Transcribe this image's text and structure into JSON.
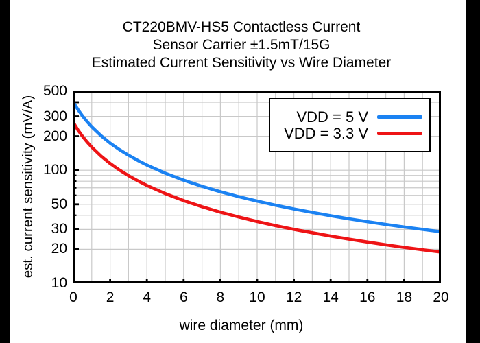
{
  "title": {
    "line1": "CT220BMV-HS5 Contactless Current",
    "line2": "Sensor Carrier ±1.5mT/15G",
    "line3": "Estimated Current Sensitivity vs Wire Diameter"
  },
  "axes": {
    "x_title": "wire diameter (mm)",
    "y_title": "est. current sensitivity (mV/A)",
    "x_labeled_values": [
      0,
      2,
      4,
      6,
      8,
      10,
      12,
      14,
      16,
      18,
      20
    ],
    "y_labeled_values": [
      500,
      300,
      200,
      100,
      50,
      30,
      20,
      10
    ]
  },
  "legend": {
    "entries": [
      {
        "label": "VDD = 5 V",
        "color": "#1b82f2"
      },
      {
        "label": "VDD = 3.3 V",
        "color": "#ee1416"
      }
    ]
  },
  "colors": {
    "frame": "#000000",
    "grid": "#c9c9c9",
    "background": "#ffffff",
    "side_bands": "#000000",
    "vdd5_line": "#1b82f2",
    "vdd33_line": "#ee1416"
  },
  "chart_data": {
    "type": "line",
    "title": "CT220BMV-HS5 Contactless Current Sensor Carrier ±1.5mT/15G — Estimated Current Sensitivity vs Wire Diameter",
    "xlabel": "wire diameter (mm)",
    "ylabel": "est. current sensitivity (mV/A)",
    "x_range": [
      0,
      20
    ],
    "y_range": [
      10,
      500
    ],
    "y_scale": "log",
    "grid": true,
    "legend_position": "top-right",
    "x_major_ticks": [
      2,
      4,
      6,
      8,
      10,
      12,
      14,
      16,
      18
    ],
    "x_minor_ticks": [
      1,
      3,
      5,
      7,
      9,
      11,
      13,
      15,
      17,
      19
    ],
    "x_gridlines": [
      1,
      2,
      3,
      4,
      5,
      6,
      7,
      8,
      9,
      10,
      11,
      12,
      13,
      14,
      15,
      16,
      17,
      18,
      19
    ],
    "y_major_ticks": [
      20,
      30,
      50,
      100,
      200,
      300,
      400
    ],
    "y_minor_ticks": [
      40,
      60,
      70,
      80,
      90
    ],
    "y_gridlines": [
      20,
      30,
      40,
      50,
      60,
      70,
      80,
      90,
      100,
      200,
      300,
      400
    ],
    "series": [
      {
        "name": "VDD = 5 V",
        "color": "#1b82f2",
        "points": [
          [
            0,
            400
          ],
          [
            0.25,
            344.1
          ],
          [
            0.5,
            302
          ],
          [
            0.75,
            269
          ],
          [
            1,
            242.5
          ],
          [
            1.5,
            202.6
          ],
          [
            2,
            174
          ],
          [
            2.5,
            152.5
          ],
          [
            3,
            135.7
          ],
          [
            3.5,
            122.2
          ],
          [
            4,
            111.2
          ],
          [
            5,
            94.2
          ],
          [
            6,
            81.7
          ],
          [
            7,
            72.1
          ],
          [
            8,
            64.6
          ],
          [
            9,
            58.4
          ],
          [
            10,
            53.4
          ],
          [
            11,
            49.1
          ],
          [
            12,
            45.5
          ],
          [
            13,
            42.4
          ],
          [
            14,
            39.6
          ],
          [
            15,
            37.2
          ],
          [
            16,
            35.1
          ],
          [
            17,
            33.2
          ],
          [
            18,
            31.5
          ],
          [
            19,
            30
          ],
          [
            20,
            28.6
          ]
        ]
      },
      {
        "name": "VDD = 3.3 V",
        "color": "#ee1416",
        "points": [
          [
            0,
            264
          ],
          [
            0.25,
            227.1
          ],
          [
            0.5,
            199.3
          ],
          [
            0.75,
            177.5
          ],
          [
            1,
            160.1
          ],
          [
            1.5,
            133.7
          ],
          [
            2,
            114.8
          ],
          [
            2.5,
            100.7
          ],
          [
            3,
            89.6
          ],
          [
            3.5,
            80.7
          ],
          [
            4,
            73.4
          ],
          [
            5,
            62.2
          ],
          [
            6,
            53.9
          ],
          [
            7,
            47.6
          ],
          [
            8,
            42.6
          ],
          [
            9,
            38.6
          ],
          [
            10,
            35.2
          ],
          [
            11,
            32.4
          ],
          [
            12,
            30
          ],
          [
            13,
            28
          ],
          [
            14,
            26.2
          ],
          [
            15,
            24.6
          ],
          [
            16,
            23.2
          ],
          [
            17,
            21.9
          ],
          [
            18,
            20.8
          ],
          [
            19,
            19.8
          ],
          [
            20,
            18.9
          ]
        ]
      }
    ]
  }
}
